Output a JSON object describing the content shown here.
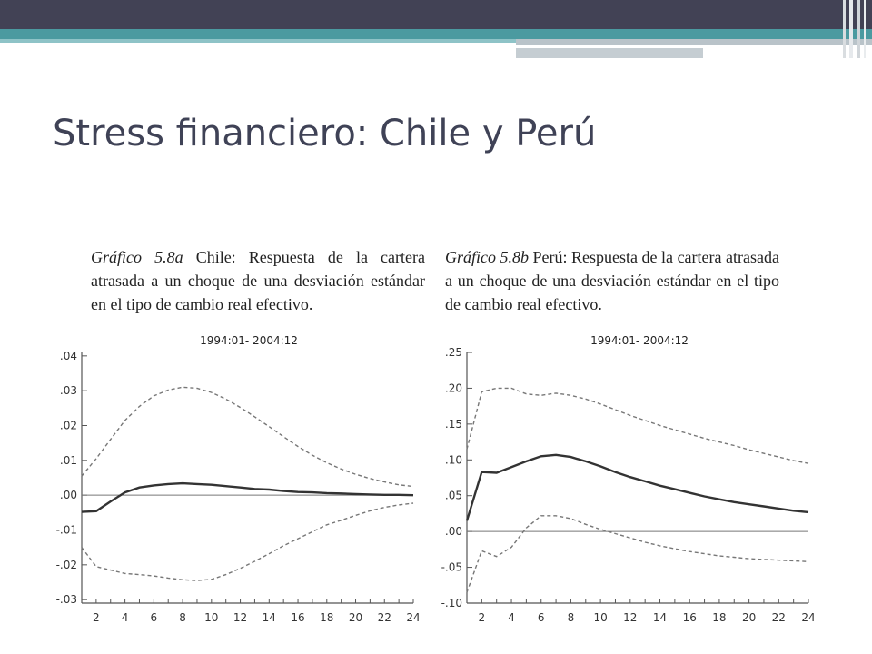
{
  "slide": {
    "title": "Stress financiero: Chile y Perú"
  },
  "theme": {
    "header_dark": "#424255",
    "header_teal": "#4b9aa0",
    "title_color": "#3f4256"
  },
  "captions": [
    {
      "label": "Gráfico 5.8a",
      "text": " Chile: Respuesta de la cartera atrasada a un choque de una desviación estándar en el tipo de cambio real efectivo."
    },
    {
      "label": "Gráfico 5.8b",
      "text": " Perú: Respuesta de la cartera atrasada a un choque de una desviación estándar en el tipo de cambio real efectivo."
    }
  ],
  "chart_data": [
    {
      "type": "line",
      "title": "1994:01- 2004:12",
      "x_ticks": [
        "2",
        "4",
        "6",
        "8",
        "10",
        "12",
        "14",
        "16",
        "18",
        "20",
        "22",
        "24"
      ],
      "y_ticks": [
        ".04",
        ".03",
        ".02",
        ".01",
        ".00",
        "-.01",
        "-.02",
        "-.03"
      ],
      "xlim": [
        1,
        24
      ],
      "ylim": [
        -0.031,
        0.041
      ],
      "zero_line": 0,
      "grid": false,
      "x": [
        1,
        2,
        3,
        4,
        5,
        6,
        7,
        8,
        9,
        10,
        11,
        12,
        13,
        14,
        15,
        16,
        17,
        18,
        19,
        20,
        21,
        22,
        23,
        24
      ],
      "series": [
        {
          "style": "solid",
          "values": [
            -0.0048,
            -0.0046,
            -0.0018,
            0.0008,
            0.0022,
            0.0028,
            0.0032,
            0.0034,
            0.0032,
            0.003,
            0.0026,
            0.0022,
            0.0018,
            0.0016,
            0.0012,
            0.0009,
            0.0008,
            0.0006,
            0.0005,
            0.0003,
            0.0002,
            0.0001,
            0.0001,
            0.0
          ]
        },
        {
          "style": "dashed",
          "values": [
            0.0055,
            0.0105,
            0.016,
            0.0215,
            0.0255,
            0.0285,
            0.0302,
            0.031,
            0.0307,
            0.0295,
            0.0276,
            0.0252,
            0.0225,
            0.0197,
            0.0168,
            0.014,
            0.0115,
            0.0093,
            0.0075,
            0.006,
            0.0048,
            0.0038,
            0.003,
            0.0025
          ]
        },
        {
          "style": "dashed",
          "values": [
            -0.015,
            -0.0205,
            -0.0215,
            -0.0225,
            -0.0228,
            -0.0232,
            -0.0238,
            -0.0243,
            -0.0245,
            -0.0242,
            -0.0228,
            -0.021,
            -0.019,
            -0.0168,
            -0.0145,
            -0.0125,
            -0.0105,
            -0.0085,
            -0.0072,
            -0.0058,
            -0.0045,
            -0.0035,
            -0.0028,
            -0.0023
          ]
        }
      ]
    },
    {
      "type": "line",
      "title": "1994:01- 2004:12",
      "x_ticks": [
        "2",
        "4",
        "6",
        "8",
        "10",
        "12",
        "14",
        "16",
        "18",
        "20",
        "22",
        "24"
      ],
      "y_ticks": [
        ".25",
        ".20",
        ".15",
        ".10",
        ".05",
        ".00",
        "-.05",
        "-.10"
      ],
      "xlim": [
        1,
        24
      ],
      "ylim": [
        -0.1,
        0.25
      ],
      "zero_line": 0,
      "grid": false,
      "x": [
        1,
        2,
        3,
        4,
        5,
        6,
        7,
        8,
        9,
        10,
        11,
        12,
        13,
        14,
        15,
        16,
        17,
        18,
        19,
        20,
        21,
        22,
        23,
        24
      ],
      "series": [
        {
          "style": "solid",
          "values": [
            0.015,
            0.083,
            0.082,
            0.09,
            0.098,
            0.105,
            0.107,
            0.104,
            0.098,
            0.091,
            0.083,
            0.076,
            0.07,
            0.064,
            0.059,
            0.054,
            0.049,
            0.045,
            0.041,
            0.038,
            0.035,
            0.032,
            0.029,
            0.027
          ]
        },
        {
          "style": "dashed",
          "values": [
            0.115,
            0.195,
            0.2,
            0.2,
            0.192,
            0.19,
            0.193,
            0.19,
            0.185,
            0.178,
            0.17,
            0.162,
            0.155,
            0.148,
            0.142,
            0.136,
            0.13,
            0.125,
            0.12,
            0.114,
            0.109,
            0.104,
            0.099,
            0.095
          ]
        },
        {
          "style": "dashed",
          "values": [
            -0.085,
            -0.027,
            -0.035,
            -0.022,
            0.005,
            0.022,
            0.022,
            0.018,
            0.01,
            0.003,
            -0.003,
            -0.009,
            -0.015,
            -0.02,
            -0.024,
            -0.028,
            -0.031,
            -0.034,
            -0.036,
            -0.038,
            -0.039,
            -0.04,
            -0.041,
            -0.042
          ]
        }
      ]
    }
  ]
}
